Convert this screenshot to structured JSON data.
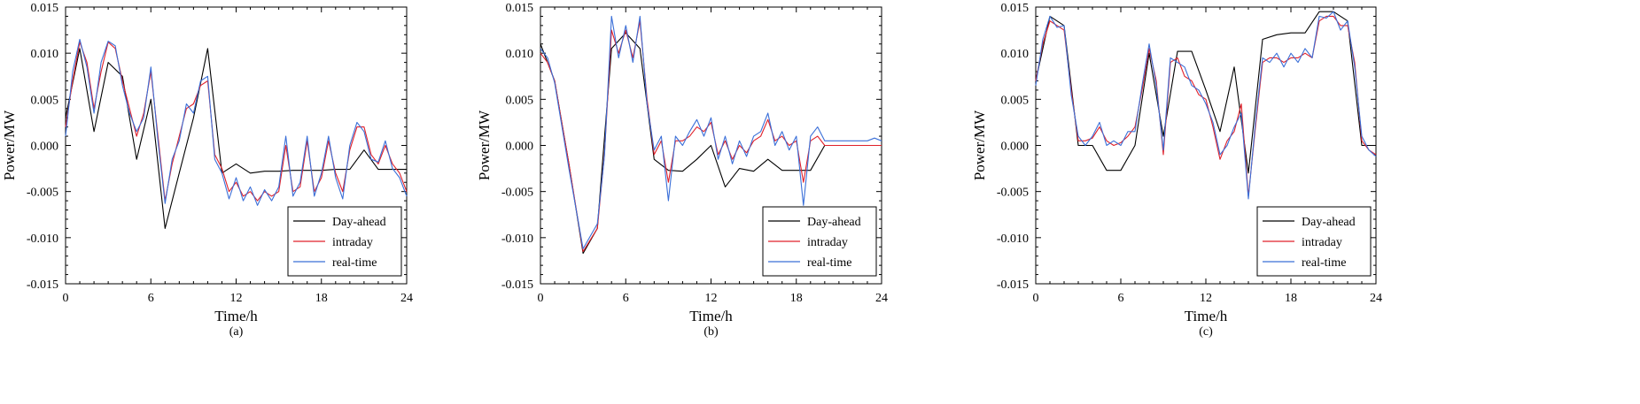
{
  "chart_data": [
    {
      "type": "line",
      "caption": "(a)",
      "xlabel": "Time/h",
      "ylabel": "Power/MW",
      "xlim": [
        0,
        24
      ],
      "ylim": [
        -0.015,
        0.015
      ],
      "x_ticks": [
        "0",
        "6",
        "12",
        "18",
        "24"
      ],
      "y_ticks": [
        "-0.015",
        "-0.010",
        "-0.005",
        "0.000",
        "0.005",
        "0.010",
        "0.015"
      ],
      "legend_position": "bottom-right",
      "colors": {
        "Day-ahead": "#000000",
        "intraday": "#e0202a",
        "real-time": "#3a6fd8"
      },
      "series": [
        {
          "name": "Day-ahead",
          "x": [
            0,
            1,
            2,
            3,
            4,
            5,
            6,
            7,
            8,
            9,
            10,
            11,
            12,
            13,
            14,
            15,
            16,
            17,
            18,
            19,
            20,
            21,
            22,
            23,
            24
          ],
          "y": [
            0.003,
            0.0105,
            0.0015,
            0.009,
            0.0075,
            -0.0015,
            0.005,
            -0.009,
            -0.003,
            0.003,
            0.0105,
            -0.003,
            -0.002,
            -0.003,
            -0.0028,
            -0.0028,
            -0.0027,
            -0.0027,
            -0.0027,
            -0.0026,
            -0.0026,
            -0.0005,
            -0.0026,
            -0.0026,
            -0.0026
          ]
        },
        {
          "name": "intraday",
          "x": [
            0,
            0.5,
            1,
            1.5,
            2,
            2.5,
            3,
            3.5,
            4,
            4.5,
            5,
            5.5,
            6,
            6.5,
            7,
            7.5,
            8,
            8.5,
            9,
            9.5,
            10,
            10.5,
            11,
            11.5,
            12,
            12.5,
            13,
            13.5,
            14,
            14.5,
            15,
            15.5,
            16,
            16.5,
            17,
            17.5,
            18,
            18.5,
            19,
            19.5,
            20,
            20.5,
            21,
            21.5,
            22,
            22.5,
            23,
            23.5,
            24
          ],
          "y": [
            0.002,
            0.007,
            0.0112,
            0.009,
            0.004,
            0.008,
            0.0112,
            0.0105,
            0.007,
            0.004,
            0.001,
            0.0035,
            0.008,
            0.001,
            -0.006,
            -0.002,
            0.001,
            0.004,
            0.0045,
            0.0065,
            0.007,
            -0.001,
            -0.0025,
            -0.005,
            -0.004,
            -0.0055,
            -0.005,
            -0.006,
            -0.005,
            -0.0055,
            -0.005,
            0.0,
            -0.005,
            -0.0045,
            0.0005,
            -0.005,
            -0.0035,
            0.0005,
            -0.003,
            -0.005,
            -0.0005,
            0.002,
            0.002,
            -0.001,
            -0.002,
            0.0,
            -0.002,
            -0.003,
            -0.005
          ]
        },
        {
          "name": "real-time",
          "x": [
            0,
            0.5,
            1,
            1.5,
            2,
            2.5,
            3,
            3.5,
            4,
            4.5,
            5,
            5.5,
            6,
            6.5,
            7,
            7.5,
            8,
            8.5,
            9,
            9.5,
            10,
            10.5,
            11,
            11.5,
            12,
            12.5,
            13,
            13.5,
            14,
            14.5,
            15,
            15.5,
            16,
            16.5,
            17,
            17.5,
            18,
            18.5,
            19,
            19.5,
            20,
            20.5,
            21,
            21.5,
            22,
            22.5,
            23,
            23.5,
            24
          ],
          "y": [
            0.001,
            0.008,
            0.0115,
            0.0085,
            0.0035,
            0.009,
            0.0113,
            0.0108,
            0.0065,
            0.0035,
            0.0015,
            0.003,
            0.0085,
            0.0005,
            -0.0063,
            -0.0015,
            0.0005,
            0.0045,
            0.0035,
            0.007,
            0.0075,
            -0.0015,
            -0.003,
            -0.0058,
            -0.0035,
            -0.006,
            -0.0045,
            -0.0065,
            -0.0048,
            -0.006,
            -0.0045,
            0.001,
            -0.0055,
            -0.004,
            0.001,
            -0.0055,
            -0.003,
            0.001,
            -0.0035,
            -0.0058,
            0.0,
            0.0025,
            0.0015,
            -0.0015,
            -0.0018,
            0.0005,
            -0.0025,
            -0.0035,
            -0.0055
          ]
        }
      ]
    },
    {
      "type": "line",
      "caption": "(b)",
      "xlabel": "Time/h",
      "ylabel": "Power/MW",
      "xlim": [
        0,
        24
      ],
      "ylim": [
        -0.015,
        0.015
      ],
      "x_ticks": [
        "0",
        "6",
        "12",
        "18",
        "24"
      ],
      "y_ticks": [
        "-0.015",
        "-0.010",
        "-0.005",
        "0.000",
        "0.005",
        "0.010",
        "0.015"
      ],
      "legend_position": "bottom-right",
      "colors": {
        "Day-ahead": "#000000",
        "intraday": "#e0202a",
        "real-time": "#3a6fd8"
      },
      "series": [
        {
          "name": "Day-ahead",
          "x": [
            0,
            1,
            2,
            3,
            4,
            5,
            6,
            7,
            8,
            9,
            10,
            11,
            12,
            13,
            14,
            15,
            16,
            17,
            18,
            19,
            20,
            21,
            22,
            23,
            24
          ],
          "y": [
            0.011,
            0.007,
            -0.002,
            -0.0117,
            -0.009,
            0.0105,
            0.0122,
            0.0105,
            -0.0015,
            -0.0027,
            -0.0028,
            -0.0015,
            0.0,
            -0.0045,
            -0.0025,
            -0.0028,
            -0.0015,
            -0.0027,
            -0.0027,
            -0.0027,
            0.0,
            0.0,
            0.0,
            0.0,
            0.0
          ]
        },
        {
          "name": "intraday",
          "x": [
            0,
            0.5,
            1,
            2,
            3,
            4,
            4.5,
            5,
            5.5,
            6,
            6.5,
            7,
            7.5,
            8,
            8.5,
            9,
            9.5,
            10,
            10.5,
            11,
            11.5,
            12,
            12.5,
            13,
            13.5,
            14,
            14.5,
            15,
            15.5,
            16,
            16.5,
            17,
            17.5,
            18,
            18.5,
            19,
            19.5,
            20,
            21,
            22,
            23,
            24
          ],
          "y": [
            0.01,
            0.009,
            0.007,
            -0.002,
            -0.0115,
            -0.009,
            -0.001,
            0.0125,
            0.01,
            0.0125,
            0.0095,
            0.0135,
            0.005,
            -0.001,
            0.0005,
            -0.004,
            0.0005,
            0.0005,
            0.001,
            0.002,
            0.0015,
            0.0025,
            -0.001,
            0.0005,
            -0.0015,
            0.0,
            -0.0008,
            0.0005,
            0.001,
            0.0028,
            0.0005,
            0.001,
            0.0,
            0.0005,
            -0.004,
            0.0005,
            0.001,
            0.0,
            0.0,
            0.0,
            0.0,
            0.0
          ]
        },
        {
          "name": "real-time",
          "x": [
            0,
            0.5,
            1,
            2,
            3,
            4,
            4.5,
            5,
            5.5,
            6,
            6.5,
            7,
            7.5,
            8,
            8.5,
            9,
            9.5,
            10,
            10.5,
            11,
            11.5,
            12,
            12.5,
            13,
            13.5,
            14,
            14.5,
            15,
            15.5,
            16,
            16.5,
            17,
            17.5,
            18,
            18.5,
            19,
            19.5,
            20,
            21,
            22,
            23,
            23.5,
            24
          ],
          "y": [
            0.0105,
            0.0095,
            0.0068,
            -0.0025,
            -0.0112,
            -0.0085,
            -0.0012,
            0.014,
            0.0095,
            0.013,
            0.009,
            0.014,
            0.0045,
            -0.0005,
            0.001,
            -0.006,
            0.001,
            0.0,
            0.0015,
            0.0028,
            0.001,
            0.003,
            -0.0015,
            0.001,
            -0.002,
            0.0005,
            -0.0012,
            0.001,
            0.0015,
            0.0035,
            0.0,
            0.0015,
            -0.0005,
            0.001,
            -0.0065,
            0.001,
            0.002,
            0.0005,
            0.0005,
            0.0005,
            0.0005,
            0.0008,
            0.0005
          ]
        }
      ]
    },
    {
      "type": "line",
      "caption": "(c)",
      "xlabel": "Time/h",
      "ylabel": "Power/MW",
      "xlim": [
        0,
        24
      ],
      "ylim": [
        -0.015,
        0.015
      ],
      "x_ticks": [
        "0",
        "6",
        "12",
        "18",
        "24"
      ],
      "y_ticks": [
        "-0.015",
        "-0.010",
        "-0.005",
        "0.000",
        "0.005",
        "0.010",
        "0.015"
      ],
      "legend_position": "bottom-right",
      "colors": {
        "Day-ahead": "#000000",
        "intraday": "#e0202a",
        "real-time": "#3a6fd8"
      },
      "series": [
        {
          "name": "Day-ahead",
          "x": [
            0,
            1,
            2,
            3,
            4,
            5,
            6,
            7,
            8,
            9,
            10,
            11,
            12,
            13,
            14,
            15,
            16,
            17,
            18,
            19,
            20,
            21,
            22,
            23,
            24
          ],
          "y": [
            0.007,
            0.014,
            0.013,
            0.0,
            0.0,
            -0.0027,
            -0.0027,
            0.0,
            0.01,
            0.001,
            0.0102,
            0.0102,
            0.006,
            0.0015,
            0.0085,
            -0.003,
            0.0115,
            0.012,
            0.0122,
            0.0122,
            0.0145,
            0.0145,
            0.0135,
            0.0,
            0.0
          ]
        },
        {
          "name": "intraday",
          "x": [
            0,
            0.5,
            1,
            1.5,
            2,
            2.5,
            3,
            3.5,
            4,
            4.5,
            5,
            5.5,
            6,
            6.5,
            7,
            7.5,
            8,
            8.5,
            9,
            9.5,
            10,
            10.5,
            11,
            11.5,
            12,
            12.5,
            13,
            13.5,
            14,
            14.5,
            15,
            15.5,
            16,
            16.5,
            17,
            17.5,
            18,
            18.5,
            19,
            19.5,
            20,
            20.5,
            21,
            21.5,
            22,
            22.5,
            23,
            23.5,
            24
          ],
          "y": [
            0.007,
            0.011,
            0.0135,
            0.013,
            0.0125,
            0.006,
            0.0005,
            0.0005,
            0.0008,
            0.002,
            0.0005,
            0.0,
            0.0003,
            0.001,
            0.002,
            0.006,
            0.0105,
            0.007,
            -0.001,
            0.009,
            0.0095,
            0.0075,
            0.007,
            0.0055,
            0.005,
            0.002,
            -0.0015,
            0.0005,
            0.0015,
            0.0045,
            -0.0055,
            0.002,
            0.009,
            0.0095,
            0.0095,
            0.009,
            0.0095,
            0.0095,
            0.01,
            0.0095,
            0.0135,
            0.014,
            0.014,
            0.013,
            0.013,
            0.009,
            0.0005,
            -0.0005,
            -0.001
          ]
        },
        {
          "name": "real-time",
          "x": [
            0,
            0.5,
            1,
            1.5,
            2,
            2.5,
            3,
            3.5,
            4,
            4.5,
            5,
            5.5,
            6,
            6.5,
            7,
            7.5,
            8,
            8.5,
            9,
            9.5,
            10,
            10.5,
            11,
            11.5,
            12,
            12.5,
            13,
            13.5,
            14,
            14.5,
            15,
            15.5,
            16,
            16.5,
            17,
            17.5,
            18,
            18.5,
            19,
            19.5,
            20,
            20.5,
            21,
            21.5,
            22,
            22.5,
            23,
            23.5,
            24
          ],
          "y": [
            0.0065,
            0.0115,
            0.014,
            0.0128,
            0.013,
            0.0055,
            0.001,
            0.0,
            0.001,
            0.0025,
            0.0,
            0.0005,
            0.0,
            0.0015,
            0.0015,
            0.0065,
            0.011,
            0.0065,
            -0.0005,
            0.0095,
            0.009,
            0.0085,
            0.0065,
            0.006,
            0.0045,
            0.0025,
            -0.001,
            0.0,
            0.002,
            0.0035,
            -0.0058,
            0.0025,
            0.0095,
            0.009,
            0.01,
            0.0085,
            0.01,
            0.009,
            0.0105,
            0.0095,
            0.014,
            0.0138,
            0.0145,
            0.0125,
            0.0135,
            0.0085,
            0.001,
            -0.0005,
            -0.0012
          ]
        }
      ]
    }
  ]
}
